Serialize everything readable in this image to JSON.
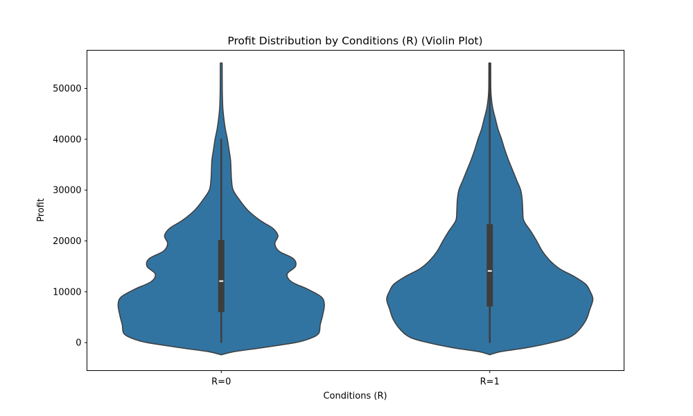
{
  "chart_data": {
    "type": "violin",
    "title": "Profit Distribution by Conditions (R) (Violin Plot)",
    "xlabel": "Conditions (R)",
    "ylabel": "Profit",
    "categories": [
      "R=0",
      "R=1"
    ],
    "ylim": [
      -5500,
      57500
    ],
    "yticks": [
      0,
      10000,
      20000,
      30000,
      40000,
      50000
    ],
    "grid": false,
    "color": "#3274a1",
    "edge_color": "#3d3d3d",
    "violins": [
      {
        "category": "R=0",
        "min": -50,
        "q1": 6000,
        "median": 12100,
        "q3": 20200,
        "whisker_high": 40100,
        "density": [
          [
            -2400,
            0.0
          ],
          [
            -1800,
            0.12
          ],
          [
            -1000,
            0.4
          ],
          [
            0,
            0.72
          ],
          [
            800,
            0.86
          ],
          [
            1800,
            0.945
          ],
          [
            3500,
            0.96
          ],
          [
            5500,
            0.985
          ],
          [
            7500,
            1.0
          ],
          [
            9000,
            0.97
          ],
          [
            10500,
            0.84
          ],
          [
            12000,
            0.68
          ],
          [
            13500,
            0.64
          ],
          [
            15000,
            0.72
          ],
          [
            16500,
            0.7
          ],
          [
            18000,
            0.56
          ],
          [
            19500,
            0.52
          ],
          [
            21000,
            0.55
          ],
          [
            22500,
            0.5
          ],
          [
            24000,
            0.38
          ],
          [
            26000,
            0.26
          ],
          [
            28000,
            0.18
          ],
          [
            30000,
            0.116
          ],
          [
            32000,
            0.1
          ],
          [
            34000,
            0.095
          ],
          [
            36000,
            0.09
          ],
          [
            38000,
            0.075
          ],
          [
            40000,
            0.06
          ],
          [
            42000,
            0.04
          ],
          [
            44000,
            0.026
          ],
          [
            46000,
            0.016
          ],
          [
            48000,
            0.012
          ],
          [
            50000,
            0.01
          ],
          [
            55000,
            0.009
          ]
        ]
      },
      {
        "category": "R=1",
        "min": -50,
        "q1": 7100,
        "median": 14100,
        "q3": 23300,
        "whisker_high": 55000,
        "density": [
          [
            -2400,
            0.0
          ],
          [
            -1800,
            0.1
          ],
          [
            -1000,
            0.36
          ],
          [
            0,
            0.6
          ],
          [
            1000,
            0.77
          ],
          [
            2500,
            0.865
          ],
          [
            4500,
            0.935
          ],
          [
            6500,
            0.97
          ],
          [
            8500,
            1.0
          ],
          [
            10000,
            0.975
          ],
          [
            11500,
            0.93
          ],
          [
            13000,
            0.82
          ],
          [
            14500,
            0.68
          ],
          [
            16000,
            0.59
          ],
          [
            18000,
            0.51
          ],
          [
            20000,
            0.455
          ],
          [
            22000,
            0.395
          ],
          [
            24000,
            0.33
          ],
          [
            26000,
            0.32
          ],
          [
            28000,
            0.315
          ],
          [
            30000,
            0.3
          ],
          [
            32000,
            0.26
          ],
          [
            34000,
            0.22
          ],
          [
            36000,
            0.18
          ],
          [
            38000,
            0.145
          ],
          [
            40000,
            0.115
          ],
          [
            42000,
            0.08
          ],
          [
            44000,
            0.055
          ],
          [
            46000,
            0.03
          ],
          [
            48000,
            0.016
          ],
          [
            50000,
            0.01
          ],
          [
            55000,
            0.009
          ]
        ]
      }
    ]
  }
}
